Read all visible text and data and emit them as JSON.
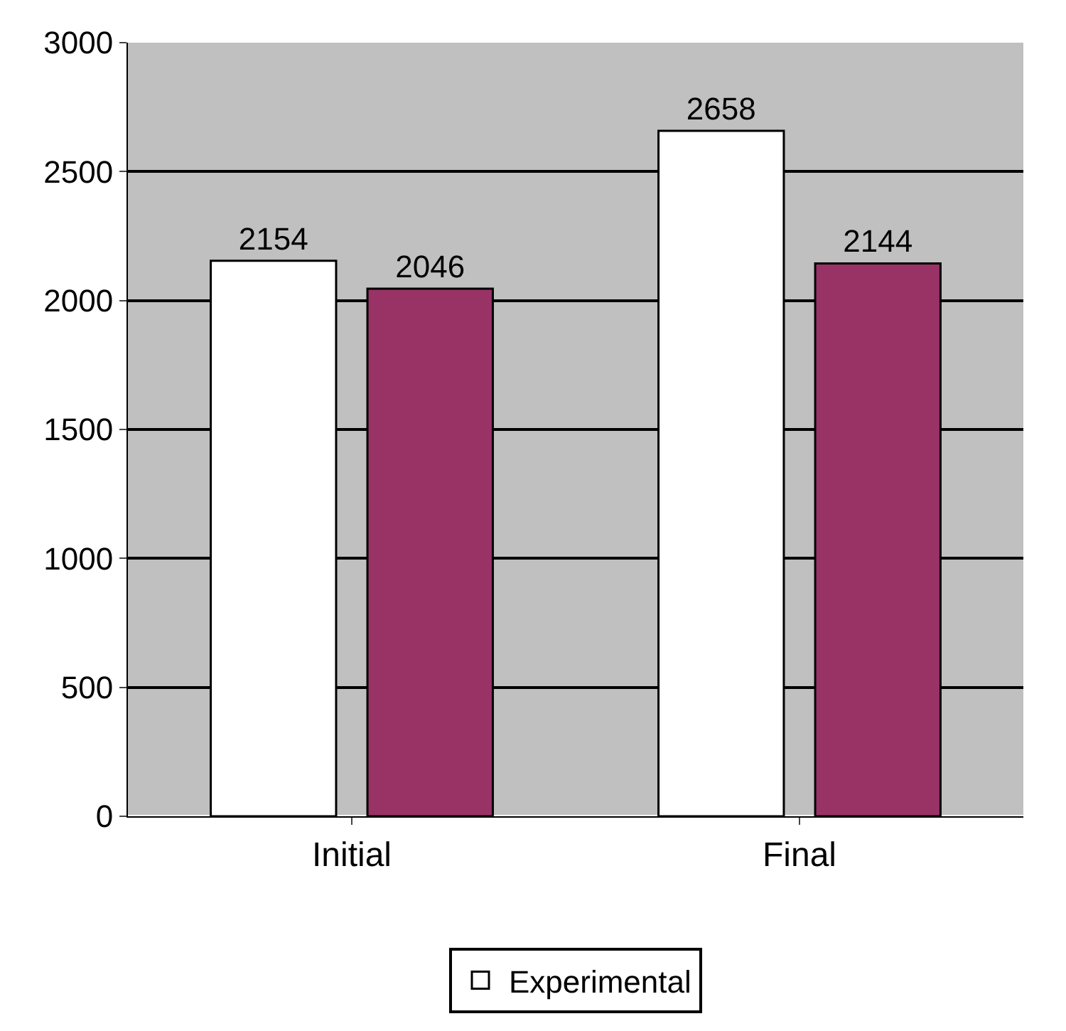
{
  "chart_data": {
    "type": "bar",
    "categories": [
      "Initial",
      "Final"
    ],
    "series": [
      {
        "name": "Experimental",
        "color": "#ffffff",
        "values": [
          2154,
          2658
        ]
      },
      {
        "color": "#993366",
        "values": [
          2046,
          2144
        ]
      }
    ],
    "ylim": [
      0,
      3000
    ],
    "yticks": [
      0,
      500,
      1000,
      1500,
      2000,
      2500,
      3000
    ],
    "grid": "y",
    "legend": "bottom",
    "data_labels": true
  }
}
